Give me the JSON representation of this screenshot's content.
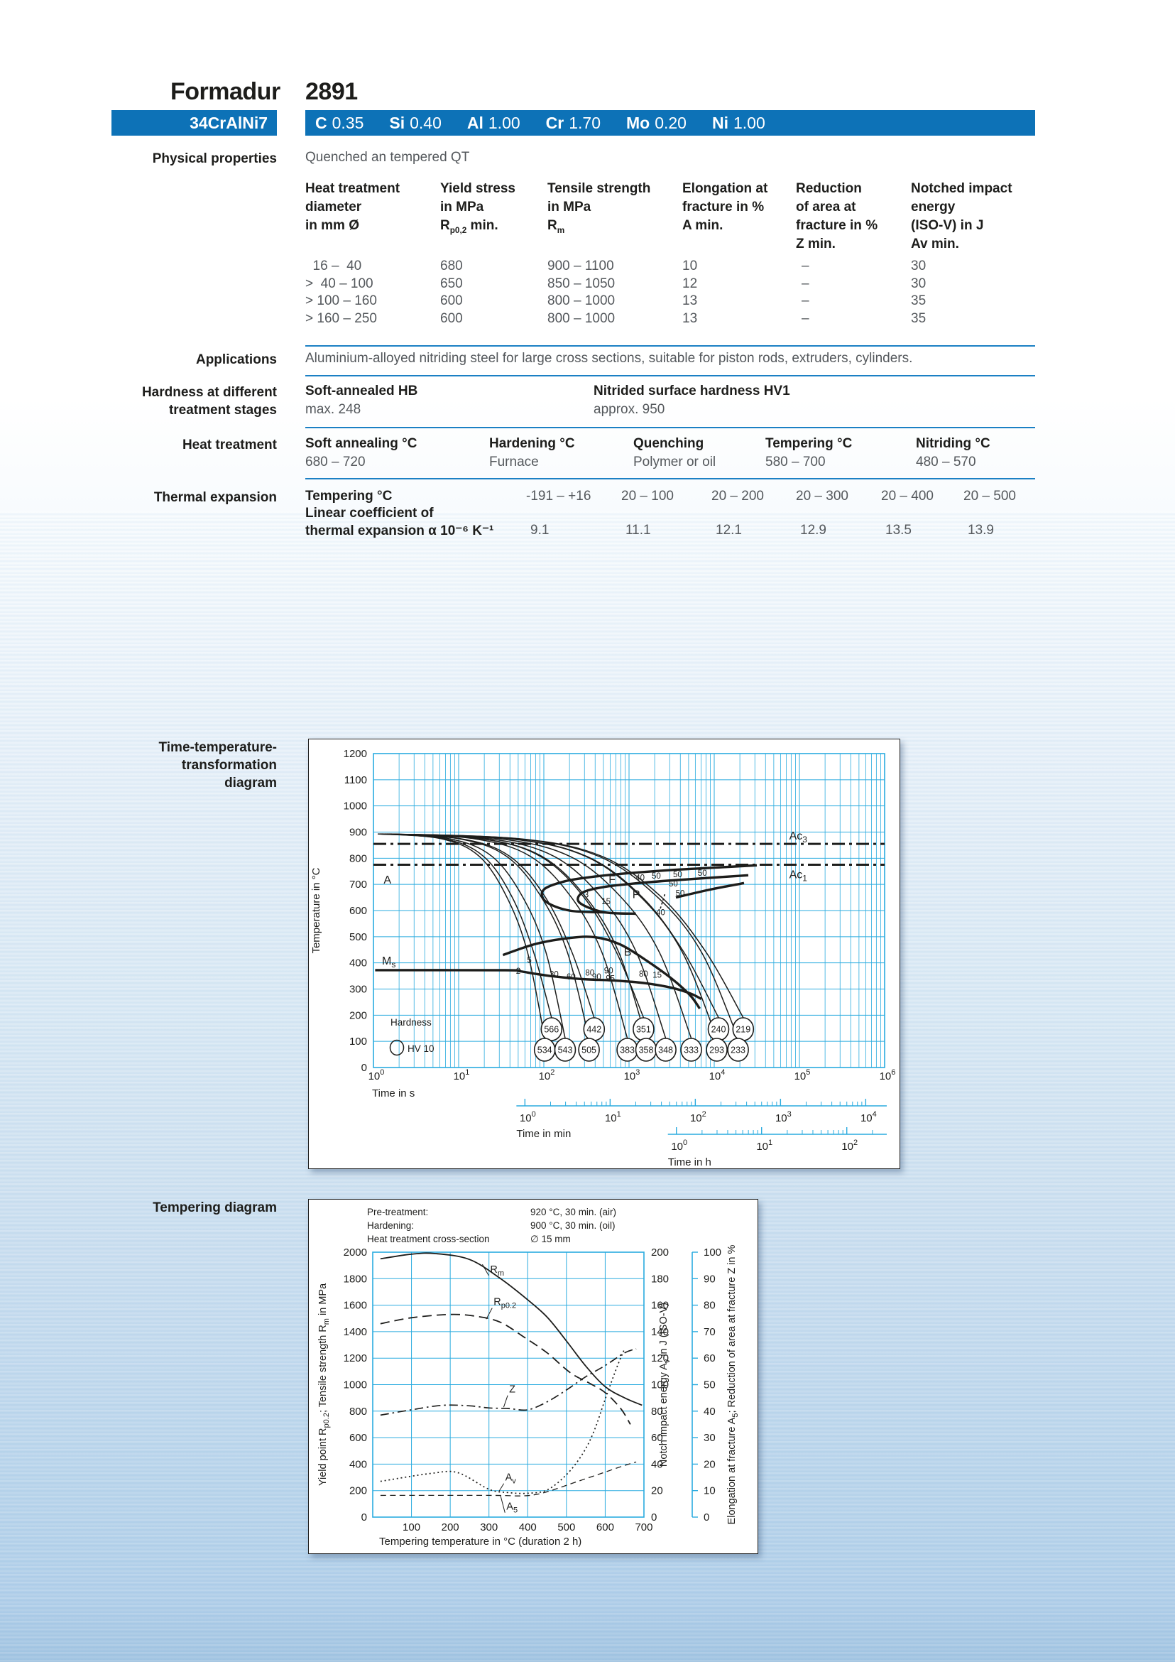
{
  "header": {
    "brand": "Formadur",
    "grade": "2891",
    "designation": "34CrAlNi7",
    "composition": [
      {
        "element": "C",
        "value": "0.35"
      },
      {
        "element": "Si",
        "value": "0.40"
      },
      {
        "element": "Al",
        "value": "1.00"
      },
      {
        "element": "Cr",
        "value": "1.70"
      },
      {
        "element": "Mo",
        "value": "0.20"
      },
      {
        "element": "Ni",
        "value": "1.00"
      }
    ]
  },
  "colors": {
    "brand_blue": "#0d72b7",
    "rule_blue": "#1b80c4",
    "grid_cyan": "#2aabdf",
    "text_dark": "#1d1d1b",
    "text_gray": "#54585c",
    "page_bottom_blue": "#b7d3ea"
  },
  "sections": {
    "physical": {
      "label": "Physical properties",
      "intro": "Quenched an tempered QT",
      "table": {
        "header_columns": [
          [
            [
              [
                "Heat treatment"
              ]
            ],
            [
              [
                "diameter"
              ]
            ],
            [
              [
                "in mm Ø"
              ]
            ]
          ],
          [
            [
              [
                "Yield stress"
              ]
            ],
            [
              [
                "in MPa"
              ]
            ],
            [
              [
                "R"
              ],
              [
                "p0,2",
                1
              ],
              [
                " min."
              ]
            ]
          ],
          [
            [
              [
                "Tensile strength"
              ]
            ],
            [
              [
                "in MPa"
              ]
            ],
            [
              [
                "R"
              ],
              [
                "m",
                1
              ]
            ]
          ],
          [
            [
              [
                "Elongation at"
              ]
            ],
            [
              [
                "fracture in %"
              ]
            ],
            [
              [
                "A min."
              ]
            ]
          ],
          [
            [
              [
                "Reduction"
              ]
            ],
            [
              [
                "of area at"
              ]
            ],
            [
              [
                "fracture in %"
              ]
            ],
            [
              [
                "Z min."
              ]
            ]
          ],
          [
            [
              [
                "Notched impact"
              ]
            ],
            [
              [
                "energy"
              ]
            ],
            [
              [
                "(ISO-V) in J"
              ]
            ],
            [
              [
                "Av min."
              ]
            ]
          ]
        ],
        "rows": [
          [
            "  16 –  40",
            "680",
            "900 – 1100",
            "10",
            "–",
            "30"
          ],
          [
            ">  40 – 100",
            "650",
            "850 – 1050",
            "12",
            "–",
            "30"
          ],
          [
            "> 100 – 160",
            "600",
            "800 – 1000",
            "13",
            "–",
            "35"
          ],
          [
            "> 160 – 250",
            "600",
            "800 – 1000",
            "13",
            "–",
            "35"
          ]
        ]
      }
    },
    "applications": {
      "label": "Applications",
      "text": "Aluminium-alloyed nitriding steel for large cross sections, suitable for piston rods, extruders, cylinders."
    },
    "hardness": {
      "label_lines": [
        "Hardness at different",
        "treatment stages"
      ],
      "groups": [
        {
          "title": "Soft-annealed HB",
          "value": "max. 248"
        },
        {
          "title": "Nitrided surface hardness HV1",
          "value": "approx. 950"
        }
      ]
    },
    "heat": {
      "label": "Heat treatment",
      "groups": [
        {
          "title": "Soft annealing °C",
          "value": "680 – 720"
        },
        {
          "title": "Hardening °C",
          "value": "Furnace"
        },
        {
          "title": "Quenching",
          "value": "Polymer or oil"
        },
        {
          "title": "Tempering °C",
          "value": "580 – 700"
        },
        {
          "title": "Nitriding °C",
          "value": "480 – 570"
        }
      ]
    },
    "thermal": {
      "label": "Thermal expansion",
      "row1_title": "Tempering °C",
      "row2_title": "Linear coefficient of",
      "row3_title": "thermal expansion α 10⁻⁶ K⁻¹",
      "ranges": [
        "-191 – +16",
        "20 – 100",
        "20 – 200",
        "20 – 300",
        "20 – 400",
        "20 – 500"
      ],
      "values": [
        "9.1",
        "11.1",
        "12.1",
        "12.9",
        "13.5",
        "13.9"
      ]
    },
    "ttt_label_lines": [
      "Time-temperature-",
      "transformation",
      "diagram"
    ],
    "tempering_label": "Tempering diagram"
  },
  "chart_data": [
    {
      "type": "line",
      "name": "time-temperature-transformation-diagram",
      "ylabel": "Temperature in °C",
      "ylim": [
        0,
        1200
      ],
      "ystep": 100,
      "x_decades": [
        0,
        6
      ],
      "time_s_label": "Time in s",
      "time_min_label": "Time in min",
      "time_h_label": "Time in h",
      "min_offset_decades": 1.778,
      "min_decades": [
        0,
        4
      ],
      "h_offset_decades": 3.556,
      "h_decades": [
        0,
        2
      ],
      "ac3": {
        "temp": 855,
        "text": "Ac",
        "sub": "3"
      },
      "ac1": {
        "temp": 775,
        "text": "Ac",
        "sub": "1"
      },
      "ms_label": {
        "text": "M",
        "sub": "s",
        "logt": 0.1,
        "temp": 393
      },
      "region_labels": [
        {
          "text": "A",
          "logt": 0.12,
          "temp": 703
        },
        {
          "text": "F",
          "logt": 2.76,
          "temp": 704
        },
        {
          "text": "P",
          "logt": 3.04,
          "temp": 648
        },
        {
          "text": "B",
          "logt": 2.94,
          "temp": 428
        }
      ],
      "phase_curves": [
        {
          "w": 3.4,
          "pts": [
            [
              0.02,
              372
            ],
            [
              1.55,
              372
            ],
            [
              1.72,
              368
            ],
            [
              1.9,
              358
            ],
            [
              2.1,
              349
            ]
          ]
        },
        {
          "w": 3.4,
          "pts": [
            [
              2.1,
              349
            ],
            [
              2.45,
              338
            ],
            [
              2.85,
              332
            ],
            [
              3.2,
              322
            ],
            [
              3.5,
              305
            ],
            [
              3.72,
              283
            ],
            [
              3.85,
              262
            ]
          ]
        },
        {
          "w": 3.4,
          "pts": [
            [
              1.52,
              430
            ],
            [
              1.9,
              472
            ],
            [
              2.3,
              495
            ],
            [
              2.6,
              498
            ],
            [
              2.9,
              470
            ],
            [
              3.2,
              410
            ],
            [
              3.5,
              340
            ],
            [
              3.72,
              275
            ],
            [
              3.83,
              225
            ]
          ]
        },
        {
          "w": 3.4,
          "pts": [
            [
              2.72,
              593
            ],
            [
              2.3,
              600
            ],
            [
              2.02,
              635
            ],
            [
              2.0,
              680
            ],
            [
              2.25,
              712
            ],
            [
              2.6,
              730
            ],
            [
              3.0,
              743
            ],
            [
              3.5,
              755
            ],
            [
              4.0,
              764
            ],
            [
              4.5,
              773
            ]
          ]
        },
        {
          "w": 3.4,
          "pts": [
            [
              3.08,
              588
            ],
            [
              2.7,
              594
            ],
            [
              2.42,
              630
            ],
            [
              2.45,
              668
            ],
            [
              2.7,
              690
            ],
            [
              3.05,
              703
            ],
            [
              3.45,
              714
            ],
            [
              3.9,
              724
            ],
            [
              4.4,
              735
            ]
          ]
        },
        {
          "w": 3.4,
          "pts": [
            [
              3.55,
              650
            ],
            [
              3.95,
              680
            ],
            [
              4.35,
              705
            ]
          ]
        },
        {
          "w": 1.6,
          "dash": "3 3",
          "pts": [
            [
              3.42,
              662
            ],
            [
              3.36,
              600
            ]
          ]
        }
      ],
      "percent_labels": [
        [
          "40",
          3.13,
          716
        ],
        [
          "50",
          3.32,
          722
        ],
        [
          "50",
          3.57,
          728
        ],
        [
          "50",
          3.86,
          733
        ],
        [
          "50",
          3.52,
          692
        ],
        [
          "50",
          3.6,
          655
        ],
        [
          "40",
          3.37,
          583
        ],
        [
          "3",
          2.5,
          650
        ],
        [
          "15",
          2.73,
          625
        ],
        [
          "5",
          1.83,
          400
        ],
        [
          "2",
          1.7,
          358
        ],
        [
          "30",
          2.12,
          346
        ],
        [
          "60",
          2.32,
          337
        ],
        [
          "80",
          2.54,
          352
        ],
        [
          "90",
          2.76,
          360
        ],
        [
          "90",
          2.62,
          336
        ],
        [
          "95",
          2.78,
          330
        ],
        [
          "80",
          3.17,
          347
        ],
        [
          "15",
          3.33,
          344
        ]
      ],
      "hardness_legend": [
        "Hardness",
        "HV 10"
      ],
      "hardness_circles_top": [
        [
          2.09,
          566
        ],
        [
          2.59,
          442
        ],
        [
          3.17,
          351
        ],
        [
          4.05,
          240
        ],
        [
          4.34,
          219
        ]
      ],
      "hardness_circles_bottom": [
        [
          2.01,
          534
        ],
        [
          2.25,
          543
        ],
        [
          2.53,
          505
        ],
        [
          2.98,
          383
        ],
        [
          3.2,
          358
        ],
        [
          3.43,
          348
        ],
        [
          3.73,
          333
        ],
        [
          4.03,
          293
        ],
        [
          4.28,
          233
        ]
      ]
    },
    {
      "type": "line",
      "name": "tempering-diagram",
      "pretreatment_rows": [
        [
          "Pre-treatment:",
          "920 °C, 30 min. (air)"
        ],
        [
          "Hardening:",
          "900 °C, 30 min. (oil)"
        ],
        [
          "Heat treatment cross-section",
          "∅ 15 mm"
        ]
      ],
      "xlabel": "Tempering temperature in °C (duration 2 h)",
      "xlim": [
        0,
        700
      ],
      "xstep": 100,
      "left_axis": {
        "parts": [
          [
            "Yield point R"
          ],
          [
            "p0.2",
            1
          ],
          [
            "; Tensile strength R"
          ],
          [
            "m",
            1
          ],
          [
            " in MPa"
          ]
        ],
        "lim": [
          0,
          2000
        ],
        "step": 200
      },
      "right1_axis": {
        "parts": [
          [
            "Notch impact energy A"
          ],
          [
            "v",
            1
          ],
          [
            " in J (ISO-V)"
          ]
        ],
        "lim": [
          0,
          200
        ],
        "step": 20
      },
      "right2_axis": {
        "parts": [
          [
            "Elongation at fracture A"
          ],
          [
            "5",
            1
          ],
          [
            "; Reduction of area at fracture Z in %"
          ]
        ],
        "lim": [
          0,
          100
        ],
        "step": 10
      },
      "series": [
        {
          "name": "Rm",
          "axis": "left",
          "style": "solid",
          "points": [
            [
              20,
              1950
            ],
            [
              100,
              1985
            ],
            [
              160,
              1990
            ],
            [
              250,
              1945
            ],
            [
              330,
              1800
            ],
            [
              400,
              1640
            ],
            [
              450,
              1510
            ],
            [
              500,
              1330
            ],
            [
              550,
              1140
            ],
            [
              600,
              985
            ],
            [
              650,
              900
            ],
            [
              695,
              845
            ]
          ]
        },
        {
          "name": "Rp0.2",
          "axis": "left",
          "style": "dash",
          "points": [
            [
              20,
              1460
            ],
            [
              100,
              1505
            ],
            [
              200,
              1530
            ],
            [
              270,
              1515
            ],
            [
              330,
              1470
            ],
            [
              390,
              1360
            ],
            [
              450,
              1240
            ],
            [
              510,
              1090
            ],
            [
              560,
              1010
            ],
            [
              600,
              940
            ],
            [
              640,
              820
            ],
            [
              665,
              700
            ]
          ]
        },
        {
          "name": "Z",
          "axis": "right2",
          "style": "dashdot",
          "points": [
            [
              20,
              38.5
            ],
            [
              100,
              40.5
            ],
            [
              180,
              42.2
            ],
            [
              250,
              42
            ],
            [
              300,
              41.2
            ],
            [
              350,
              41
            ],
            [
              400,
              40.5
            ],
            [
              450,
              43.5
            ],
            [
              500,
              48
            ],
            [
              550,
              53
            ],
            [
              600,
              57.2
            ],
            [
              650,
              62
            ],
            [
              680,
              63.5
            ]
          ]
        },
        {
          "name": "Av",
          "axis": "right1",
          "style": "dot",
          "points": [
            [
              20,
              27
            ],
            [
              150,
              33
            ],
            [
              220,
              33.5
            ],
            [
              300,
              21
            ],
            [
              350,
              18.5
            ],
            [
              400,
              18
            ],
            [
              450,
              20.5
            ],
            [
              500,
              32
            ],
            [
              540,
              47
            ],
            [
              570,
              64
            ],
            [
              600,
              89
            ],
            [
              630,
              113
            ],
            [
              650,
              127
            ]
          ]
        },
        {
          "name": "A5",
          "axis": "right2",
          "style": "longdash",
          "points": [
            [
              20,
              8.2
            ],
            [
              300,
              8.2
            ],
            [
              380,
              8
            ],
            [
              420,
              8.5
            ],
            [
              460,
              10
            ],
            [
              500,
              12
            ],
            [
              550,
              14.5
            ],
            [
              600,
              17
            ],
            [
              650,
              19.5
            ],
            [
              680,
              20.8
            ]
          ]
        }
      ],
      "curve_labels": [
        {
          "parts": [
            [
              "R"
            ],
            [
              "m",
              1
            ]
          ],
          "x": 303,
          "y_left": 1845,
          "lx": 283,
          "ly_left": 1908
        },
        {
          "parts": [
            [
              "R"
            ],
            [
              "p0.2",
              1
            ]
          ],
          "x": 312,
          "y_left": 1600,
          "lx": 293,
          "ly_left": 1495
        },
        {
          "parts": [
            [
              "Z"
            ]
          ],
          "x": 352,
          "y_left": 940,
          "lx": 338,
          "ly_left": 830
        },
        {
          "parts": [
            [
              "A"
            ],
            [
              "v",
              1
            ]
          ],
          "x": 342,
          "y_left": 275,
          "lx": 326,
          "ly_left": 195
        },
        {
          "parts": [
            [
              "A"
            ],
            [
              "5",
              1
            ]
          ],
          "x": 345,
          "y_left": 55,
          "lx": 330,
          "ly_left": 160
        }
      ]
    }
  ]
}
